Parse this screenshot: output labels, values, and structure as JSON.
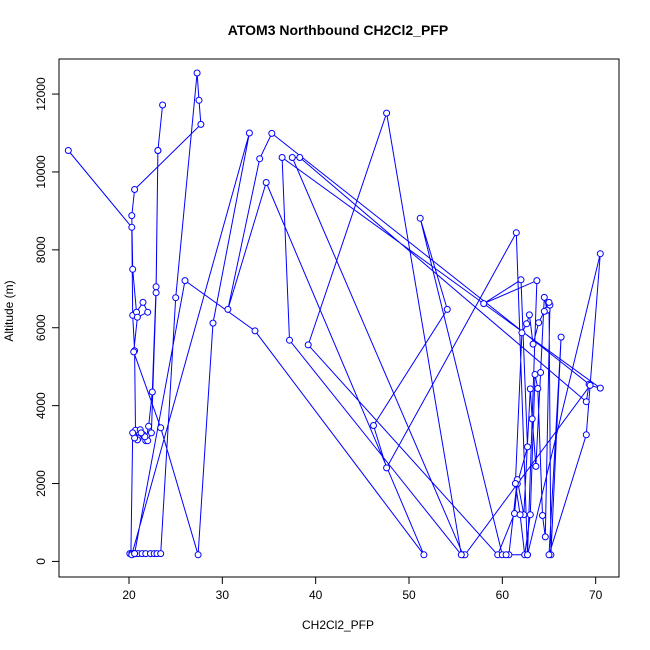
{
  "chart_data": {
    "type": "line",
    "title": "ATOM3 Northbound CH2Cl2_PFP",
    "xlabel": "CH2Cl2_PFP",
    "ylabel": "Altitude (m)",
    "xlim": [
      12.5,
      72.5
    ],
    "ylim": [
      -400,
      12900
    ],
    "xticks": [
      20,
      30,
      40,
      50,
      60,
      70
    ],
    "yticks": [
      0,
      2000,
      4000,
      6000,
      8000,
      10000,
      12000
    ],
    "grid": false,
    "legend": "none",
    "colors": {
      "series": "#0000ff",
      "axis": "#000000"
    },
    "series": [
      {
        "x": [
          13.5,
          20.3,
          20.4,
          20.6,
          20.7,
          20.9,
          21.0,
          21.2,
          21.5,
          21.8,
          22.1,
          22.5,
          22.9,
          23.1,
          23.6,
          23.1,
          22.9,
          22.4,
          22.0,
          21.7,
          21.3,
          20.9,
          20.6,
          20.4,
          20.2,
          20.1,
          20.3,
          20.5,
          20.7,
          21.0,
          21.4,
          21.8,
          22.3,
          22.7,
          23.0,
          23.4,
          25.0,
          27.3,
          27.5,
          27.7,
          20.6,
          20.3,
          20.4,
          20.8,
          21.5,
          22.0,
          20.9,
          20.5,
          23.4,
          27.4,
          29.0,
          32.9,
          20.3,
          20.6,
          26.0,
          33.5,
          51.6,
          34.7,
          30.6,
          34.0,
          35.3,
          69.3,
          69.0,
          38.3,
          37.5,
          55.8,
          56.0,
          69.4,
          70.5,
          36.4,
          37.2,
          55.6,
          47.6,
          39.2,
          59.5,
          61.3,
          61.6,
          62.7,
          62.0,
          58.0,
          63.7,
          62.7,
          61.5,
          47.6,
          46.2,
          54.1,
          51.2,
          60.0,
          60.7,
          61.6,
          62.3,
          63.0,
          63.2,
          63.6,
          64.1,
          64.5,
          64.8,
          65.1,
          64.6,
          64.3,
          63.8,
          63.5,
          63.0,
          62.4,
          61.9,
          61.4,
          62.1,
          62.6,
          62.9,
          63.3,
          63.9,
          64.5,
          65.0,
          65.2,
          66.3,
          65.0,
          69.0,
          70.5,
          62.7,
          60.4
        ],
        "y": [
          10550,
          8580,
          6320,
          5410,
          3370,
          3170,
          3160,
          3380,
          3260,
          3100,
          3470,
          4350,
          7050,
          10550,
          11720,
          10550,
          6900,
          3300,
          3100,
          3200,
          3300,
          3120,
          3170,
          3300,
          200,
          200,
          200,
          200,
          200,
          200,
          200,
          200,
          200,
          200,
          200,
          200,
          6770,
          12540,
          11840,
          11220,
          9550,
          8880,
          7500,
          6400,
          6650,
          6400,
          6270,
          5380,
          3430,
          170,
          6120,
          11000,
          170,
          200,
          7210,
          5920,
          170,
          9730,
          6470,
          10340,
          10990,
          4550,
          4100,
          10370,
          10370,
          170,
          170,
          4520,
          4450,
          10370,
          5680,
          170,
          11510,
          5560,
          170,
          1230,
          1990,
          2940,
          7230,
          6620,
          7210,
          170,
          8440,
          2400,
          3490,
          6470,
          8810,
          170,
          170,
          2100,
          1200,
          4430,
          3660,
          2440,
          4850,
          6780,
          6450,
          6580,
          630,
          1180,
          4440,
          4800,
          1200,
          170,
          1200,
          2000,
          5870,
          6100,
          6330,
          5580,
          6130,
          6420,
          6650,
          170,
          5760,
          170,
          3250,
          7900,
          170,
          170
        ]
      }
    ]
  }
}
